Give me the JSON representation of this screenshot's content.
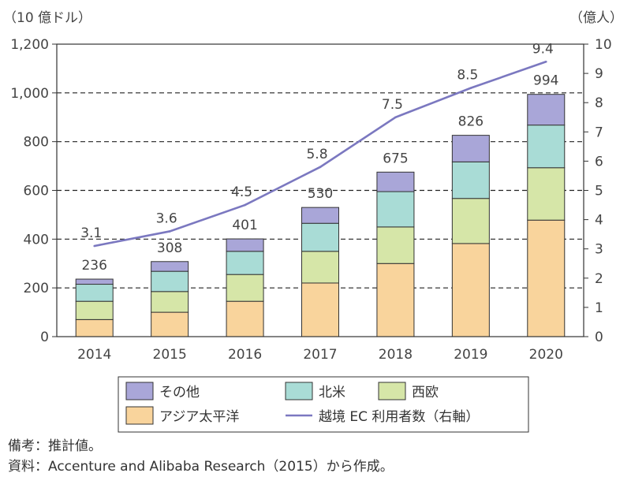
{
  "chart_data": {
    "type": "bar",
    "stacked": true,
    "categories": [
      "2014",
      "2015",
      "2016",
      "2017",
      "2018",
      "2019",
      "2020"
    ],
    "ylabel_left": "（10 億ドル）",
    "ylabel_right": "（億人）",
    "ylim_left": [
      0,
      1200
    ],
    "yticks_left": [
      "0",
      "200",
      "400",
      "600",
      "800",
      "1,000",
      "1,200"
    ],
    "ylim_right": [
      0,
      10
    ],
    "yticks_right": [
      "0",
      "1",
      "2",
      "3",
      "4",
      "5",
      "6",
      "7",
      "8",
      "9",
      "10"
    ],
    "series": [
      {
        "name": "アジア太平洋",
        "color": "#f9d49c",
        "values": [
          70,
          100,
          145,
          220,
          300,
          382,
          478
        ]
      },
      {
        "name": "西欧",
        "color": "#d6e6a8",
        "values": [
          75,
          85,
          110,
          130,
          150,
          185,
          215
        ]
      },
      {
        "name": "北米",
        "color": "#a9dcd6",
        "values": [
          70,
          83,
          95,
          115,
          145,
          150,
          175
        ]
      },
      {
        "name": "その他",
        "color": "#a9a6d8",
        "values": [
          21,
          40,
          51,
          65,
          80,
          109,
          126
        ]
      }
    ],
    "totals": [
      "236",
      "308",
      "401",
      "530",
      "675",
      "826",
      "994"
    ],
    "line_series": {
      "name": "越境 EC 利用者数（右軸）",
      "color": "#7b78c0",
      "values": [
        3.1,
        3.6,
        4.5,
        5.8,
        7.5,
        8.5,
        9.4
      ],
      "labels": [
        "3.1",
        "3.6",
        "4.5",
        "5.8",
        "7.5",
        "8.5",
        "9.4"
      ]
    },
    "grid": "dashed at 200-unit intervals",
    "legend": "bottom"
  },
  "notes": {
    "line1": "備考：推計値。",
    "line2": "資料：Accenture and Alibaba Research（2015）から作成。"
  }
}
